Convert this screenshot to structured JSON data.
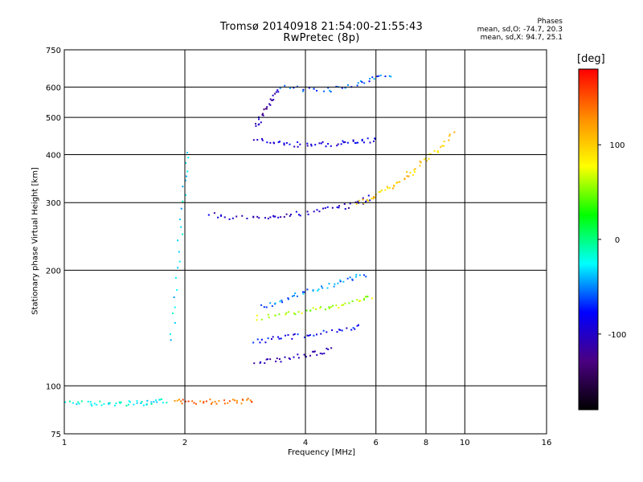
{
  "title": {
    "line1": "Tromsø 20140918 21:54:00-21:55:43",
    "line2": "RwPretec (8p)"
  },
  "phases": {
    "header": "Phases",
    "o_stats": "mean, sd,O: -74.7, 20.3",
    "x_stats": "mean, sd,X:  94.7, 25.1"
  },
  "colorbar": {
    "unit": "[deg]",
    "ticks": [
      {
        "label": "100",
        "value": 100
      },
      {
        "label": "0",
        "value": 0
      },
      {
        "label": "-100",
        "value": -100
      }
    ],
    "range": [
      -180,
      180
    ],
    "colormap": [
      "#000000",
      "#4b0082",
      "#0000ff",
      "#00ffff",
      "#00ff00",
      "#ffff00",
      "#ff8c00",
      "#ff0000"
    ]
  },
  "chart_data": {
    "type": "scatter",
    "title": "Tromsø 20140918 21:54:00-21:55:43\nRwPretec (8p)",
    "xlabel": "Frequency [MHz]",
    "ylabel": "Stationary phase Virtual Height [km]",
    "xscale": "log",
    "yscale": "log",
    "xlim": [
      1,
      16
    ],
    "ylim": [
      75,
      750
    ],
    "xticks": [
      {
        "label": "1",
        "value": 1
      },
      {
        "label": "2",
        "value": 2
      },
      {
        "label": "4",
        "value": 4
      },
      {
        "label": "6",
        "value": 6
      },
      {
        "label": "8",
        "value": 8
      },
      {
        "label": "10",
        "value": 10
      },
      {
        "label": "16",
        "value": 16
      }
    ],
    "yticks": [
      {
        "label": "75",
        "value": 75
      },
      {
        "label": "100",
        "value": 100
      },
      {
        "label": "200",
        "value": 200
      },
      {
        "label": "300",
        "value": 300
      },
      {
        "label": "400",
        "value": 400
      },
      {
        "label": "500",
        "value": 500
      },
      {
        "label": "600",
        "value": 600
      },
      {
        "label": "750",
        "value": 750
      }
    ],
    "grid": true,
    "color_variable": "phase [deg]",
    "traces": [
      {
        "name_hint": "E-region trace",
        "x": [
          1.0,
          1.1,
          1.2,
          1.3,
          1.4,
          1.5,
          1.6,
          1.7,
          1.78
        ],
        "y": [
          90,
          90,
          90,
          90,
          90,
          90,
          90,
          91,
          91
        ],
        "phase": -20
      },
      {
        "name_hint": "E trace extension",
        "x": [
          1.9,
          2.0,
          2.2,
          2.4,
          2.6,
          2.8,
          2.95
        ],
        "y": [
          91,
          91,
          91,
          91,
          91,
          91,
          92
        ],
        "phase": 140
      },
      {
        "name_hint": "spread F column",
        "x": [
          1.85,
          1.9,
          1.95,
          2.0,
          2.05
        ],
        "y": [
          130,
          180,
          250,
          330,
          400
        ],
        "phase": -30
      },
      {
        "name_hint": "F trace",
        "x": [
          2.3,
          2.6,
          3.0,
          3.3,
          3.6,
          4.0,
          4.5,
          5.0,
          5.5,
          5.8
        ],
        "y": [
          280,
          275,
          272,
          275,
          278,
          282,
          287,
          292,
          300,
          310
        ],
        "phase": -100
      },
      {
        "name_hint": "F trace (X)",
        "x": [
          5.4,
          5.8,
          6.2,
          6.6,
          7.0,
          7.4,
          7.8,
          8.3,
          8.8,
          9.3
        ],
        "y": [
          300,
          308,
          318,
          330,
          345,
          362,
          380,
          400,
          420,
          460
        ],
        "phase": 100
      },
      {
        "name_hint": "2F echo",
        "x": [
          3.0,
          3.3,
          3.6,
          4.0,
          4.4,
          4.8,
          5.2,
          5.6,
          6.0
        ],
        "y": [
          440,
          430,
          425,
          425,
          425,
          428,
          430,
          432,
          440
        ],
        "phase": -90
      },
      {
        "name_hint": "3F echo",
        "x": [
          3.0,
          3.1,
          3.2,
          3.3,
          3.4
        ],
        "y": [
          470,
          500,
          530,
          560,
          590
        ],
        "phase": -110
      },
      {
        "name_hint": "top echoes",
        "x": [
          3.5,
          4.0,
          4.5,
          5.0,
          5.5,
          6.0,
          6.5
        ],
        "y": [
          600,
          590,
          590,
          600,
          615,
          630,
          645
        ],
        "phase": -60
      },
      {
        "name_hint": "lower F multihop A",
        "x": [
          3.0,
          3.3,
          3.6,
          4.0,
          4.3,
          4.6
        ],
        "y": [
          115,
          116,
          118,
          120,
          122,
          124
        ],
        "phase": -110
      },
      {
        "name_hint": "lower F multihop B",
        "x": [
          3.0,
          3.3,
          3.6,
          4.0,
          4.5,
          5.0,
          5.5
        ],
        "y": [
          130,
          132,
          134,
          136,
          138,
          140,
          142
        ],
        "phase": -80
      },
      {
        "name_hint": "lower F multihop C",
        "x": [
          3.0,
          3.4,
          3.8,
          4.2,
          4.6,
          5.0,
          5.5,
          5.8
        ],
        "y": [
          150,
          152,
          155,
          158,
          160,
          163,
          167,
          170
        ],
        "phase": 60
      },
      {
        "name_hint": "lower F multihop D",
        "x": [
          3.1,
          3.4,
          3.7,
          4.0,
          4.4,
          4.8,
          5.2,
          5.6
        ],
        "y": [
          160,
          165,
          170,
          175,
          180,
          185,
          190,
          195
        ],
        "phase": -50
      }
    ]
  }
}
